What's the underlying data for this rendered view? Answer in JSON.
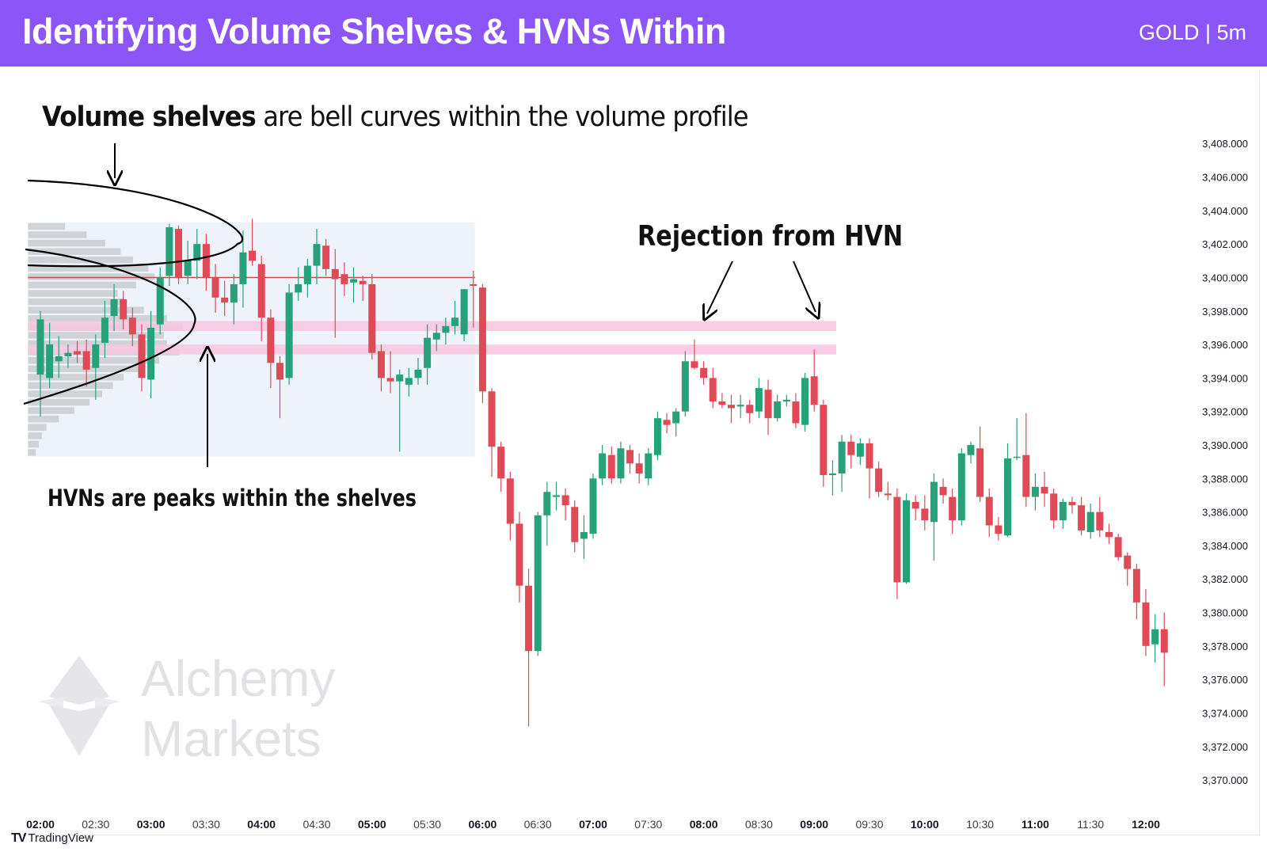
{
  "header": {
    "title": "Identifying Volume Shelves & HVNs Within",
    "symbol_tag": "GOLD | 5m",
    "bg_color": "#8b55f7"
  },
  "annotations": {
    "volume_shelves_bold": "Volume shelves",
    "volume_shelves_rest": " are bell curves within the volume profile",
    "hvn_note": "HVNs are peaks within the shelves",
    "rejection_note": "Rejection from HVN"
  },
  "watermark": {
    "line1": "Alchemy",
    "line2": "Markets",
    "icon": "alchemy-star-logo"
  },
  "footer": {
    "logo_mark": "TV",
    "logo_text": "TradingView",
    "icon": "tradingview-logo-icon"
  },
  "chart_data": {
    "type": "candlestick",
    "symbol": "GOLD",
    "timeframe": "5m",
    "x_ticks": [
      "02:00",
      "02:30",
      "03:00",
      "03:30",
      "04:00",
      "04:30",
      "05:00",
      "05:30",
      "06:00",
      "06:30",
      "07:00",
      "07:30",
      "08:00",
      "08:30",
      "09:00",
      "09:30",
      "10:00",
      "10:30",
      "11:00",
      "11:30",
      "12:00"
    ],
    "y_ticks": [
      "3,408.000",
      "3,406.000",
      "3,404.000",
      "3,402.000",
      "3,400.000",
      "3,398.000",
      "3,396.000",
      "3,394.000",
      "3,392.000",
      "3,390.000",
      "3,388.000",
      "3,386.000",
      "3,384.000",
      "3,382.000",
      "3,380.000",
      "3,378.000",
      "3,376.000",
      "3,374.000",
      "3,372.000",
      "3,370.000"
    ],
    "ylim": [
      3369.2,
      3410.8
    ],
    "xlim_time": [
      "01:55",
      "12:10"
    ],
    "grid": false,
    "colors": {
      "up": "#26a17a",
      "down": "#e04a57",
      "hvn_zone": "#f8c6e0",
      "poc_line": "#c0504d",
      "profile_bar": "#b8b8b8",
      "profile_bg": "#eef3fb"
    },
    "hvn_zones": [
      [
        3396.8,
        3397.4
      ],
      [
        3395.4,
        3396.0
      ]
    ],
    "poc_price": 3400.0,
    "volume_profile": {
      "time_range": [
        "01:55",
        "05:55"
      ],
      "price_range": [
        3389.5,
        3403.2
      ],
      "relative_volume": [
        [
          3389.5,
          0.05
        ],
        [
          3390.0,
          0.07
        ],
        [
          3390.5,
          0.09
        ],
        [
          3391.0,
          0.12
        ],
        [
          3391.5,
          0.2
        ],
        [
          3392.0,
          0.3
        ],
        [
          3392.5,
          0.4
        ],
        [
          3393.0,
          0.48
        ],
        [
          3393.5,
          0.55
        ],
        [
          3394.0,
          0.62
        ],
        [
          3394.5,
          0.72
        ],
        [
          3395.0,
          0.85
        ],
        [
          3395.5,
          0.98
        ],
        [
          3396.0,
          0.9
        ],
        [
          3396.5,
          0.88
        ],
        [
          3397.0,
          1.0
        ],
        [
          3397.5,
          0.9
        ],
        [
          3398.0,
          0.75
        ],
        [
          3398.5,
          0.62
        ],
        [
          3399.0,
          0.58
        ],
        [
          3399.5,
          0.7
        ],
        [
          3400.0,
          0.82
        ],
        [
          3400.5,
          0.78
        ],
        [
          3401.0,
          0.68
        ],
        [
          3401.5,
          0.6
        ],
        [
          3402.0,
          0.5
        ],
        [
          3402.5,
          0.38
        ],
        [
          3403.0,
          0.24
        ]
      ]
    },
    "candles": [
      {
        "t": "02:00",
        "o": 3394.2,
        "h": 3398.0,
        "l": 3391.7,
        "c": 3397.5
      },
      {
        "t": "02:05",
        "o": 3394.0,
        "h": 3397.3,
        "l": 3393.4,
        "c": 3396.0
      },
      {
        "t": "02:10",
        "o": 3395.0,
        "h": 3396.5,
        "l": 3394.0,
        "c": 3395.3
      },
      {
        "t": "02:15",
        "o": 3395.3,
        "h": 3396.0,
        "l": 3394.6,
        "c": 3395.5
      },
      {
        "t": "02:20",
        "o": 3395.6,
        "h": 3396.2,
        "l": 3394.9,
        "c": 3395.4
      },
      {
        "t": "02:25",
        "o": 3395.6,
        "h": 3396.3,
        "l": 3393.5,
        "c": 3394.5
      },
      {
        "t": "02:30",
        "o": 3394.6,
        "h": 3396.6,
        "l": 3392.7,
        "c": 3396.0
      },
      {
        "t": "02:35",
        "o": 3396.1,
        "h": 3398.6,
        "l": 3395.2,
        "c": 3397.6
      },
      {
        "t": "02:40",
        "o": 3397.7,
        "h": 3399.6,
        "l": 3396.8,
        "c": 3398.7
      },
      {
        "t": "02:45",
        "o": 3398.7,
        "h": 3399.2,
        "l": 3396.9,
        "c": 3397.5
      },
      {
        "t": "02:50",
        "o": 3397.6,
        "h": 3398.2,
        "l": 3395.9,
        "c": 3396.6
      },
      {
        "t": "02:55",
        "o": 3396.6,
        "h": 3397.2,
        "l": 3393.2,
        "c": 3394.0
      },
      {
        "t": "03:00",
        "o": 3393.9,
        "h": 3398.0,
        "l": 3392.8,
        "c": 3397.0
      },
      {
        "t": "03:05",
        "o": 3397.2,
        "h": 3400.6,
        "l": 3396.6,
        "c": 3400.0
      },
      {
        "t": "03:10",
        "o": 3400.1,
        "h": 3403.2,
        "l": 3399.5,
        "c": 3403.0
      },
      {
        "t": "03:15",
        "o": 3402.9,
        "h": 3403.1,
        "l": 3399.6,
        "c": 3400.0
      },
      {
        "t": "03:20",
        "o": 3400.1,
        "h": 3402.2,
        "l": 3399.6,
        "c": 3401.0
      },
      {
        "t": "03:25",
        "o": 3401.0,
        "h": 3402.9,
        "l": 3399.9,
        "c": 3402.0
      },
      {
        "t": "03:30",
        "o": 3402.0,
        "h": 3402.6,
        "l": 3399.2,
        "c": 3400.0
      },
      {
        "t": "03:35",
        "o": 3400.0,
        "h": 3400.8,
        "l": 3397.9,
        "c": 3398.8
      },
      {
        "t": "03:40",
        "o": 3398.8,
        "h": 3399.8,
        "l": 3397.7,
        "c": 3398.5
      },
      {
        "t": "03:45",
        "o": 3398.5,
        "h": 3400.2,
        "l": 3397.2,
        "c": 3399.6
      },
      {
        "t": "03:50",
        "o": 3399.6,
        "h": 3402.8,
        "l": 3398.2,
        "c": 3401.5
      },
      {
        "t": "03:55",
        "o": 3401.6,
        "h": 3403.5,
        "l": 3400.7,
        "c": 3401.0
      },
      {
        "t": "04:00",
        "o": 3400.8,
        "h": 3401.3,
        "l": 3396.2,
        "c": 3397.6
      },
      {
        "t": "04:05",
        "o": 3397.6,
        "h": 3398.1,
        "l": 3393.4,
        "c": 3394.9
      },
      {
        "t": "04:10",
        "o": 3394.9,
        "h": 3395.3,
        "l": 3391.6,
        "c": 3393.9
      },
      {
        "t": "04:15",
        "o": 3394.0,
        "h": 3399.6,
        "l": 3393.6,
        "c": 3399.1
      },
      {
        "t": "04:20",
        "o": 3399.1,
        "h": 3400.6,
        "l": 3398.6,
        "c": 3399.6
      },
      {
        "t": "04:25",
        "o": 3399.6,
        "h": 3401.1,
        "l": 3398.8,
        "c": 3400.7
      },
      {
        "t": "04:30",
        "o": 3400.7,
        "h": 3402.9,
        "l": 3399.6,
        "c": 3402.0
      },
      {
        "t": "04:35",
        "o": 3401.9,
        "h": 3402.3,
        "l": 3400.1,
        "c": 3400.5
      },
      {
        "t": "04:40",
        "o": 3400.5,
        "h": 3401.7,
        "l": 3396.4,
        "c": 3399.9
      },
      {
        "t": "04:45",
        "o": 3400.2,
        "h": 3400.9,
        "l": 3398.9,
        "c": 3399.6
      },
      {
        "t": "04:50",
        "o": 3399.7,
        "h": 3400.6,
        "l": 3398.5,
        "c": 3399.9
      },
      {
        "t": "04:55",
        "o": 3399.8,
        "h": 3400.1,
        "l": 3398.6,
        "c": 3399.6
      },
      {
        "t": "05:00",
        "o": 3399.6,
        "h": 3400.2,
        "l": 3395.1,
        "c": 3395.5
      },
      {
        "t": "05:05",
        "o": 3395.6,
        "h": 3396.0,
        "l": 3393.2,
        "c": 3394.0
      },
      {
        "t": "05:10",
        "o": 3394.0,
        "h": 3395.6,
        "l": 3393.1,
        "c": 3393.8
      },
      {
        "t": "05:15",
        "o": 3393.8,
        "h": 3394.5,
        "l": 3389.6,
        "c": 3394.2
      },
      {
        "t": "05:20",
        "o": 3393.6,
        "h": 3394.6,
        "l": 3392.9,
        "c": 3394.0
      },
      {
        "t": "05:25",
        "o": 3394.0,
        "h": 3395.2,
        "l": 3393.6,
        "c": 3394.5
      },
      {
        "t": "05:30",
        "o": 3394.6,
        "h": 3397.2,
        "l": 3393.6,
        "c": 3396.4
      },
      {
        "t": "05:35",
        "o": 3396.3,
        "h": 3397.2,
        "l": 3395.6,
        "c": 3396.7
      },
      {
        "t": "05:40",
        "o": 3396.7,
        "h": 3397.6,
        "l": 3396.0,
        "c": 3397.1
      },
      {
        "t": "05:45",
        "o": 3397.1,
        "h": 3398.6,
        "l": 3396.6,
        "c": 3397.6
      },
      {
        "t": "05:50",
        "o": 3396.6,
        "h": 3399.3,
        "l": 3396.2,
        "c": 3399.3
      },
      {
        "t": "05:55",
        "o": 3399.6,
        "h": 3400.4,
        "l": 3397.0,
        "c": 3399.5
      },
      {
        "t": "06:00",
        "o": 3399.4,
        "h": 3399.6,
        "l": 3392.5,
        "c": 3393.2
      },
      {
        "t": "06:05",
        "o": 3393.2,
        "h": 3393.4,
        "l": 3388.1,
        "c": 3389.9
      },
      {
        "t": "06:10",
        "o": 3389.9,
        "h": 3390.2,
        "l": 3387.2,
        "c": 3388.0
      },
      {
        "t": "06:15",
        "o": 3388.0,
        "h": 3388.4,
        "l": 3384.3,
        "c": 3385.3
      },
      {
        "t": "06:20",
        "o": 3385.3,
        "h": 3386.0,
        "l": 3380.6,
        "c": 3381.6
      },
      {
        "t": "06:25",
        "o": 3381.6,
        "h": 3382.6,
        "l": 3373.2,
        "c": 3377.7
      },
      {
        "t": "06:30",
        "o": 3377.7,
        "h": 3386.0,
        "l": 3377.4,
        "c": 3385.8
      },
      {
        "t": "06:35",
        "o": 3385.8,
        "h": 3387.8,
        "l": 3384.0,
        "c": 3387.2
      },
      {
        "t": "06:40",
        "o": 3386.9,
        "h": 3387.8,
        "l": 3386.1,
        "c": 3387.0
      },
      {
        "t": "06:45",
        "o": 3387.0,
        "h": 3387.4,
        "l": 3385.5,
        "c": 3386.4
      },
      {
        "t": "06:50",
        "o": 3386.3,
        "h": 3386.7,
        "l": 3383.6,
        "c": 3384.2
      },
      {
        "t": "06:55",
        "o": 3384.4,
        "h": 3385.8,
        "l": 3383.2,
        "c": 3384.8
      },
      {
        "t": "07:00",
        "o": 3384.7,
        "h": 3388.3,
        "l": 3384.4,
        "c": 3388.0
      },
      {
        "t": "07:05",
        "o": 3388.0,
        "h": 3390.0,
        "l": 3387.6,
        "c": 3389.5
      },
      {
        "t": "07:10",
        "o": 3389.4,
        "h": 3389.9,
        "l": 3387.7,
        "c": 3388.0
      },
      {
        "t": "07:15",
        "o": 3388.0,
        "h": 3390.2,
        "l": 3387.7,
        "c": 3389.8
      },
      {
        "t": "07:20",
        "o": 3389.7,
        "h": 3390.0,
        "l": 3388.3,
        "c": 3388.9
      },
      {
        "t": "07:25",
        "o": 3388.9,
        "h": 3389.5,
        "l": 3387.7,
        "c": 3388.3
      },
      {
        "t": "07:30",
        "o": 3388.0,
        "h": 3389.8,
        "l": 3387.6,
        "c": 3389.5
      },
      {
        "t": "07:35",
        "o": 3389.4,
        "h": 3392.0,
        "l": 3389.1,
        "c": 3391.6
      },
      {
        "t": "07:40",
        "o": 3391.5,
        "h": 3391.9,
        "l": 3390.7,
        "c": 3391.2
      },
      {
        "t": "07:45",
        "o": 3391.3,
        "h": 3392.2,
        "l": 3390.5,
        "c": 3392.0
      },
      {
        "t": "07:50",
        "o": 3392.0,
        "h": 3395.6,
        "l": 3391.7,
        "c": 3395.0
      },
      {
        "t": "07:55",
        "o": 3395.0,
        "h": 3396.3,
        "l": 3394.5,
        "c": 3394.6
      },
      {
        "t": "08:00",
        "o": 3394.6,
        "h": 3395.0,
        "l": 3393.6,
        "c": 3394.0
      },
      {
        "t": "08:05",
        "o": 3394.0,
        "h": 3394.6,
        "l": 3392.2,
        "c": 3392.6
      },
      {
        "t": "08:10",
        "o": 3392.6,
        "h": 3393.1,
        "l": 3392.2,
        "c": 3392.4
      },
      {
        "t": "08:15",
        "o": 3392.4,
        "h": 3393.0,
        "l": 3391.3,
        "c": 3392.2
      },
      {
        "t": "08:20",
        "o": 3392.3,
        "h": 3393.0,
        "l": 3391.6,
        "c": 3392.4
      },
      {
        "t": "08:25",
        "o": 3392.4,
        "h": 3392.7,
        "l": 3391.3,
        "c": 3391.9
      },
      {
        "t": "08:30",
        "o": 3392.0,
        "h": 3394.0,
        "l": 3391.6,
        "c": 3393.4
      },
      {
        "t": "08:35",
        "o": 3393.3,
        "h": 3393.9,
        "l": 3390.6,
        "c": 3391.6
      },
      {
        "t": "08:40",
        "o": 3391.6,
        "h": 3393.0,
        "l": 3391.4,
        "c": 3392.6
      },
      {
        "t": "08:45",
        "o": 3392.6,
        "h": 3393.0,
        "l": 3392.3,
        "c": 3392.7
      },
      {
        "t": "08:50",
        "o": 3392.6,
        "h": 3393.1,
        "l": 3391.0,
        "c": 3391.3
      },
      {
        "t": "08:55",
        "o": 3391.2,
        "h": 3394.3,
        "l": 3390.8,
        "c": 3394.0
      },
      {
        "t": "09:00",
        "o": 3394.1,
        "h": 3395.7,
        "l": 3392.0,
        "c": 3392.4
      },
      {
        "t": "09:05",
        "o": 3392.4,
        "h": 3392.7,
        "l": 3387.5,
        "c": 3388.2
      },
      {
        "t": "09:10",
        "o": 3388.2,
        "h": 3389.1,
        "l": 3387.0,
        "c": 3388.3
      },
      {
        "t": "09:15",
        "o": 3388.3,
        "h": 3390.6,
        "l": 3387.2,
        "c": 3390.2
      },
      {
        "t": "09:20",
        "o": 3390.2,
        "h": 3390.6,
        "l": 3388.6,
        "c": 3389.4
      },
      {
        "t": "09:25",
        "o": 3389.3,
        "h": 3390.4,
        "l": 3388.8,
        "c": 3390.1
      },
      {
        "t": "09:30",
        "o": 3390.1,
        "h": 3390.4,
        "l": 3386.8,
        "c": 3388.6
      },
      {
        "t": "09:35",
        "o": 3388.6,
        "h": 3389.0,
        "l": 3386.9,
        "c": 3387.2
      },
      {
        "t": "09:40",
        "o": 3387.1,
        "h": 3387.8,
        "l": 3386.7,
        "c": 3387.0
      },
      {
        "t": "09:45",
        "o": 3386.9,
        "h": 3387.4,
        "l": 3380.8,
        "c": 3381.8
      },
      {
        "t": "09:50",
        "o": 3381.8,
        "h": 3387.1,
        "l": 3381.7,
        "c": 3386.7
      },
      {
        "t": "09:55",
        "o": 3386.6,
        "h": 3387.0,
        "l": 3385.5,
        "c": 3386.2
      },
      {
        "t": "10:00",
        "o": 3386.2,
        "h": 3387.0,
        "l": 3384.9,
        "c": 3385.5
      },
      {
        "t": "10:05",
        "o": 3385.4,
        "h": 3388.3,
        "l": 3383.1,
        "c": 3387.8
      },
      {
        "t": "10:10",
        "o": 3387.5,
        "h": 3388.0,
        "l": 3386.5,
        "c": 3387.0
      },
      {
        "t": "10:15",
        "o": 3386.9,
        "h": 3387.4,
        "l": 3384.7,
        "c": 3385.5
      },
      {
        "t": "10:20",
        "o": 3385.5,
        "h": 3389.8,
        "l": 3385.2,
        "c": 3389.5
      },
      {
        "t": "10:25",
        "o": 3389.4,
        "h": 3390.2,
        "l": 3388.9,
        "c": 3390.0
      },
      {
        "t": "10:30",
        "o": 3389.8,
        "h": 3391.1,
        "l": 3386.6,
        "c": 3386.9
      },
      {
        "t": "10:35",
        "o": 3386.9,
        "h": 3387.4,
        "l": 3384.5,
        "c": 3385.2
      },
      {
        "t": "10:40",
        "o": 3385.2,
        "h": 3385.7,
        "l": 3384.3,
        "c": 3384.7
      },
      {
        "t": "10:45",
        "o": 3384.6,
        "h": 3390.1,
        "l": 3384.5,
        "c": 3389.2
      },
      {
        "t": "10:50",
        "o": 3389.3,
        "h": 3391.6,
        "l": 3389.1,
        "c": 3389.3
      },
      {
        "t": "10:55",
        "o": 3389.4,
        "h": 3391.9,
        "l": 3386.3,
        "c": 3386.9
      },
      {
        "t": "11:00",
        "o": 3386.9,
        "h": 3388.3,
        "l": 3386.1,
        "c": 3387.5
      },
      {
        "t": "11:05",
        "o": 3387.5,
        "h": 3388.4,
        "l": 3386.3,
        "c": 3387.1
      },
      {
        "t": "11:10",
        "o": 3387.1,
        "h": 3387.4,
        "l": 3385.0,
        "c": 3385.5
      },
      {
        "t": "11:15",
        "o": 3385.5,
        "h": 3386.8,
        "l": 3385.0,
        "c": 3386.6
      },
      {
        "t": "11:20",
        "o": 3386.6,
        "h": 3386.9,
        "l": 3385.9,
        "c": 3386.4
      },
      {
        "t": "11:25",
        "o": 3386.4,
        "h": 3386.9,
        "l": 3384.6,
        "c": 3384.9
      },
      {
        "t": "11:30",
        "o": 3384.8,
        "h": 3386.5,
        "l": 3384.4,
        "c": 3386.0
      },
      {
        "t": "11:35",
        "o": 3386.0,
        "h": 3386.9,
        "l": 3384.5,
        "c": 3384.9
      },
      {
        "t": "11:40",
        "o": 3384.8,
        "h": 3385.3,
        "l": 3384.1,
        "c": 3384.5
      },
      {
        "t": "11:45",
        "o": 3384.5,
        "h": 3384.7,
        "l": 3383.1,
        "c": 3383.3
      },
      {
        "t": "11:50",
        "o": 3383.4,
        "h": 3383.6,
        "l": 3381.6,
        "c": 3382.6
      },
      {
        "t": "11:55",
        "o": 3382.6,
        "h": 3382.9,
        "l": 3379.6,
        "c": 3380.6
      },
      {
        "t": "12:00",
        "o": 3380.6,
        "h": 3381.4,
        "l": 3377.4,
        "c": 3378.0
      },
      {
        "t": "12:05",
        "o": 3378.1,
        "h": 3379.9,
        "l": 3377.0,
        "c": 3379.0
      },
      {
        "t": "12:10",
        "o": 3379.0,
        "h": 3380.0,
        "l": 3375.6,
        "c": 3377.6
      }
    ]
  }
}
